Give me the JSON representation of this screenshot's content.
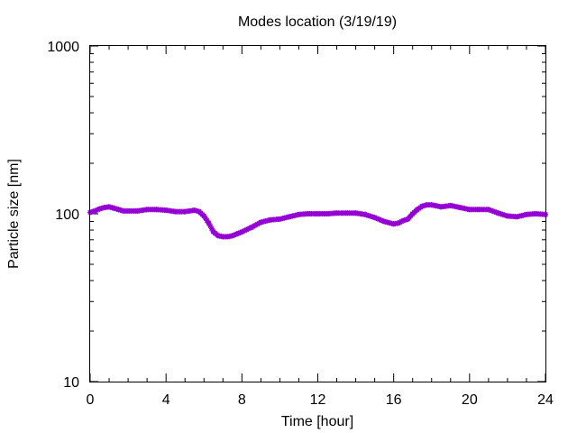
{
  "chart_data": {
    "type": "scatter",
    "title": "Modes location (3/19/19)",
    "xlabel": "Time [hour]",
    "ylabel": "Particle size [nm]",
    "xlim": [
      0,
      24
    ],
    "ylim": [
      10,
      1000
    ],
    "yscale": "log",
    "x_ticks": [
      "0",
      "4",
      "8",
      "12",
      "16",
      "20",
      "24"
    ],
    "y_ticks": [
      "10",
      "100",
      "1000"
    ],
    "grid": false,
    "marker_color": "#9400d3",
    "series": [
      {
        "x": [
          0.0,
          0.25,
          0.5,
          0.75,
          1.0,
          1.25,
          1.5,
          1.75,
          2.0,
          2.5,
          3.0,
          3.5,
          4.0,
          4.5,
          5.0,
          5.5,
          5.75,
          6.0,
          6.25,
          6.5,
          6.75,
          7.0,
          7.25,
          7.5,
          7.75,
          8.0,
          8.5,
          9.0,
          9.5,
          10.0,
          10.5,
          11.0,
          11.5,
          12.0,
          12.5,
          13.0,
          13.5,
          14.0,
          14.5,
          15.0,
          15.5,
          16.0,
          16.25,
          16.5,
          16.75,
          17.0,
          17.25,
          17.5,
          17.75,
          18.0,
          18.5,
          19.0,
          19.5,
          20.0,
          20.5,
          21.0,
          21.5,
          22.0,
          22.5,
          23.0,
          23.5,
          24.0
        ],
        "y": [
          102,
          104,
          107,
          109,
          110,
          108,
          106,
          104,
          104,
          104,
          106,
          106,
          105,
          103,
          103,
          105,
          103,
          97,
          88,
          78,
          74,
          73,
          73,
          74,
          76,
          78,
          83,
          89,
          92,
          93,
          96,
          99,
          100,
          100,
          100,
          101,
          101,
          101,
          99,
          95,
          90,
          87,
          88,
          91,
          93,
          100,
          106,
          111,
          113,
          113,
          110,
          112,
          109,
          106,
          106,
          106,
          101,
          97,
          96,
          99,
          100,
          99
        ]
      }
    ]
  }
}
